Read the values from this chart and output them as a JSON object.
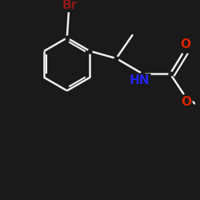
{
  "background_color": "#1a1a1a",
  "bond_color": "#f0f0f0",
  "bond_width": 1.8,
  "atoms": {
    "Br": {
      "color": "#8b1a1a",
      "fontsize": 11,
      "fontweight": "bold"
    },
    "O": {
      "color": "#dd2200",
      "fontsize": 11,
      "fontweight": "bold"
    },
    "N": {
      "color": "#2222ee",
      "fontsize": 11,
      "fontweight": "bold"
    },
    "HN": {
      "color": "#2222ee",
      "fontsize": 11,
      "fontweight": "bold"
    }
  },
  "figsize": [
    2.5,
    2.5
  ],
  "dpi": 100
}
